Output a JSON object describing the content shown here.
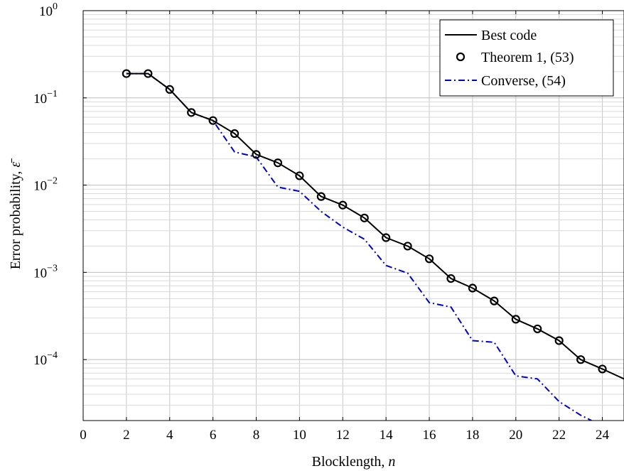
{
  "chart_data": {
    "type": "line",
    "xlabel": "Blocklength, n",
    "xlabel_parts": {
      "text": "Blocklength, ",
      "var": "n"
    },
    "ylabel": "Error probability, ε̄",
    "ylabel_parts": {
      "text": "Error probability, ",
      "var": "ε̄"
    },
    "xlim": [
      0,
      25
    ],
    "ylim": [
      2e-05,
      1
    ],
    "yscale": "log",
    "grid": true,
    "legend_position": "top-right",
    "x_ticks": [
      0,
      2,
      4,
      6,
      8,
      10,
      12,
      14,
      16,
      18,
      20,
      22,
      24
    ],
    "x_tick_labels": [
      "0",
      "2",
      "4",
      "6",
      "8",
      "10",
      "12",
      "14",
      "16",
      "18",
      "20",
      "22",
      "24"
    ],
    "y_ticks": [
      {
        "value": 1,
        "base": "10",
        "exp": "0"
      },
      {
        "value": 0.1,
        "base": "10",
        "exp": "−1"
      },
      {
        "value": 0.01,
        "base": "10",
        "exp": "−2"
      },
      {
        "value": 0.001,
        "base": "10",
        "exp": "−3"
      },
      {
        "value": 0.0001,
        "base": "10",
        "exp": "−4"
      }
    ],
    "series": [
      {
        "name": "Best code",
        "style": "solid",
        "color": "#000000",
        "x": [
          2,
          3,
          4,
          5,
          6,
          7,
          8,
          9,
          10,
          11,
          12,
          13,
          14,
          15,
          16,
          17,
          18,
          19,
          20,
          21,
          22,
          23,
          24,
          25
        ],
        "y": [
          0.19,
          0.19,
          0.125,
          0.068,
          0.055,
          0.039,
          0.0225,
          0.018,
          0.0128,
          0.0074,
          0.0059,
          0.0042,
          0.0025,
          0.002,
          0.00143,
          0.00085,
          0.00066,
          0.00047,
          0.00029,
          0.000225,
          0.000165,
          0.0001,
          7.8e-05,
          6e-05
        ]
      },
      {
        "name": "Theorem 1, (53)",
        "style": "markers",
        "marker": "circle",
        "color": "#000000",
        "x": [
          2,
          3,
          4,
          5,
          6,
          7,
          8,
          9,
          10,
          11,
          12,
          13,
          14,
          15,
          16,
          17,
          18,
          19,
          20,
          21,
          22,
          23,
          24
        ],
        "y": [
          0.19,
          0.19,
          0.125,
          0.068,
          0.055,
          0.039,
          0.0225,
          0.018,
          0.0128,
          0.0074,
          0.0059,
          0.0042,
          0.0025,
          0.002,
          0.00143,
          0.00085,
          0.00066,
          0.00047,
          0.00029,
          0.000225,
          0.000165,
          0.0001,
          7.8e-05
        ]
      },
      {
        "name": "Converse, (54)",
        "style": "dash-dot",
        "color": "#0000cc",
        "x": [
          2,
          3,
          4,
          5,
          6,
          7,
          8,
          9,
          10,
          11,
          12,
          13,
          14,
          15,
          16,
          17,
          18,
          19,
          20,
          21,
          22,
          23,
          23.5
        ],
        "y": [
          0.19,
          0.19,
          0.125,
          0.068,
          0.055,
          0.024,
          0.021,
          0.0095,
          0.0085,
          0.005,
          0.0033,
          0.0024,
          0.0012,
          0.00098,
          0.00045,
          0.0004,
          0.000165,
          0.000158,
          6.5e-05,
          6e-05,
          3.3e-05,
          2.3e-05,
          2e-05
        ]
      }
    ]
  }
}
